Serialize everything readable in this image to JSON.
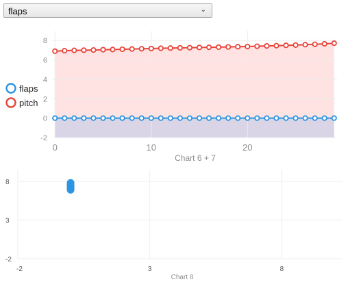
{
  "dropdown": {
    "selected": "flaps"
  },
  "icons": {
    "dropdown_chevron": "chevron-down-icon"
  },
  "chart1": {
    "caption": "Chart 6 + 7"
  },
  "chart2": {
    "caption": "Chart 8"
  },
  "chart_data": [
    {
      "type": "area",
      "title": "Chart 6 + 7",
      "xlabel": "",
      "ylabel": "",
      "xlim": [
        -0.3,
        29.3
      ],
      "ylim": [
        -2,
        9
      ],
      "x_ticks": [
        0,
        10,
        20
      ],
      "y_ticks": [
        -2,
        0,
        2,
        4,
        6,
        8
      ],
      "grid": true,
      "legend": "left",
      "x": [
        0,
        1,
        2,
        3,
        4,
        5,
        6,
        7,
        8,
        9,
        10,
        11,
        12,
        13,
        14,
        15,
        16,
        17,
        18,
        19,
        20,
        21,
        22,
        23,
        24,
        25,
        26,
        27,
        28,
        29
      ],
      "series": [
        {
          "name": "flaps",
          "color": "#2b95e0",
          "fill": "#d9d4e6",
          "values": [
            0,
            0,
            0,
            0,
            0,
            0,
            0,
            0,
            0,
            0,
            0,
            0,
            0,
            0,
            0,
            0,
            0,
            0,
            0,
            0,
            0,
            0,
            0,
            0,
            0,
            0,
            0,
            0,
            0,
            0
          ]
        },
        {
          "name": "pitch",
          "color": "#e8443a",
          "fill": "#ffdede",
          "values": [
            6.9,
            6.95,
            6.98,
            7.0,
            7.02,
            7.05,
            7.07,
            7.1,
            7.12,
            7.15,
            7.17,
            7.2,
            7.22,
            7.24,
            7.26,
            7.28,
            7.3,
            7.32,
            7.34,
            7.36,
            7.38,
            7.41,
            7.44,
            7.47,
            7.5,
            7.53,
            7.57,
            7.61,
            7.66,
            7.72
          ]
        }
      ]
    },
    {
      "type": "scatter",
      "title": "Chart 8",
      "xlabel": "",
      "ylabel": "",
      "xlim": [
        -2,
        10.3
      ],
      "ylim": [
        -2,
        9.5
      ],
      "x_ticks": [
        -2,
        3,
        8
      ],
      "y_ticks": [
        -2,
        3,
        8
      ],
      "grid": true,
      "series": [
        {
          "color": "#2b95e0",
          "x": [
            0,
            0,
            0,
            0,
            0,
            0,
            0,
            0,
            0,
            0
          ],
          "y": [
            6.9,
            7.0,
            7.1,
            7.2,
            7.3,
            7.4,
            7.5,
            7.6,
            7.7,
            7.8
          ]
        }
      ]
    }
  ]
}
